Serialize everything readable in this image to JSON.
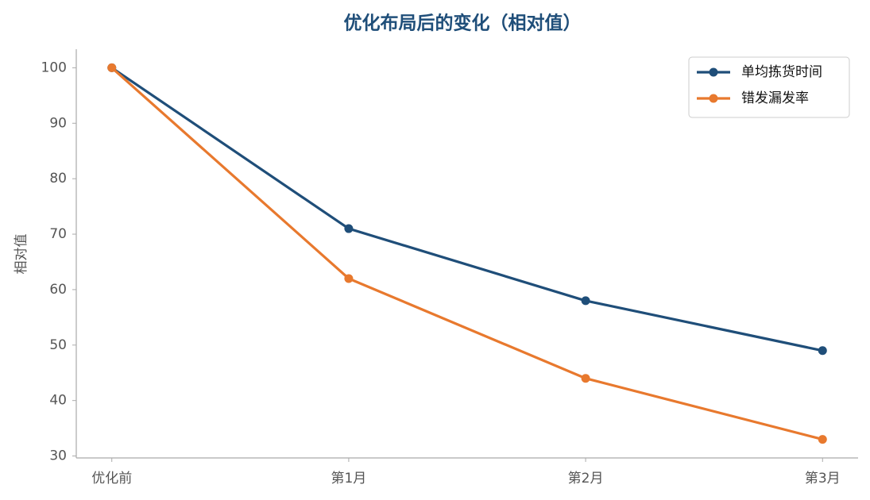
{
  "chart_data": {
    "type": "line",
    "title": "优化布局后的变化（相对值）",
    "y_label": "相对值",
    "categories": [
      "优化前",
      "第1月",
      "第2月",
      "第3月"
    ],
    "series": [
      {
        "name": "单均拣货时间",
        "color": "#1f4e79",
        "values": [
          100,
          71,
          58,
          49
        ]
      },
      {
        "name": "错发漏发率",
        "color": "#e8792e",
        "values": [
          100,
          62,
          44,
          33
        ]
      }
    ],
    "ylim": [
      29.65,
      103.35
    ],
    "yticks": [
      30,
      40,
      50,
      60,
      70,
      80,
      90,
      100
    ],
    "grid": false,
    "legend": "upper right"
  }
}
